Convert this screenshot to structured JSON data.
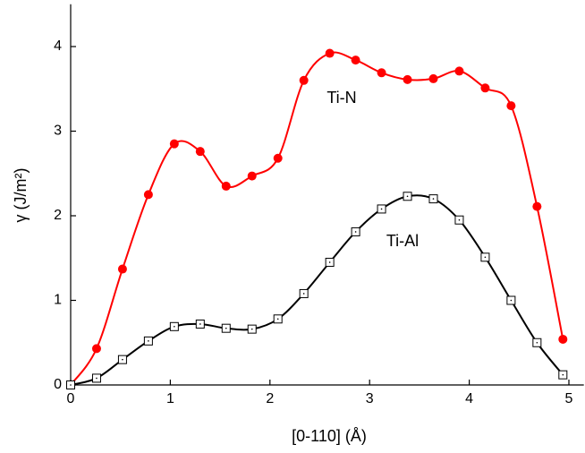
{
  "chart_data": {
    "type": "line",
    "xlabel": "[0-110] (Å)",
    "ylabel": "γ (J/m²)",
    "x": [
      0,
      0.26,
      0.52,
      0.78,
      1.04,
      1.3,
      1.56,
      1.82,
      2.08,
      2.34,
      2.6,
      2.86,
      3.12,
      3.38,
      3.64,
      3.9,
      4.16,
      4.42,
      4.68,
      4.94
    ],
    "series": [
      {
        "name": "Ti-N",
        "color": "#ff0000",
        "marker": "circle",
        "values": [
          0,
          0.43,
          1.37,
          2.25,
          2.85,
          2.76,
          2.35,
          2.47,
          2.68,
          3.6,
          3.92,
          3.84,
          3.69,
          3.61,
          3.62,
          3.71,
          3.51,
          3.3,
          2.11,
          0.54
        ]
      },
      {
        "name": "Ti-Al",
        "color": "#000000",
        "marker": "square",
        "values": [
          0,
          0.08,
          0.3,
          0.52,
          0.69,
          0.72,
          0.67,
          0.66,
          0.78,
          1.08,
          1.45,
          1.81,
          2.08,
          2.23,
          2.2,
          1.95,
          1.51,
          1.0,
          0.5,
          0.12
        ]
      }
    ],
    "xlim": [
      0,
      5.15
    ],
    "ylim": [
      0,
      4.5
    ],
    "xticks": [
      0,
      1,
      2,
      3,
      4,
      5
    ],
    "yticks": [
      0,
      1,
      2,
      3,
      4
    ]
  }
}
